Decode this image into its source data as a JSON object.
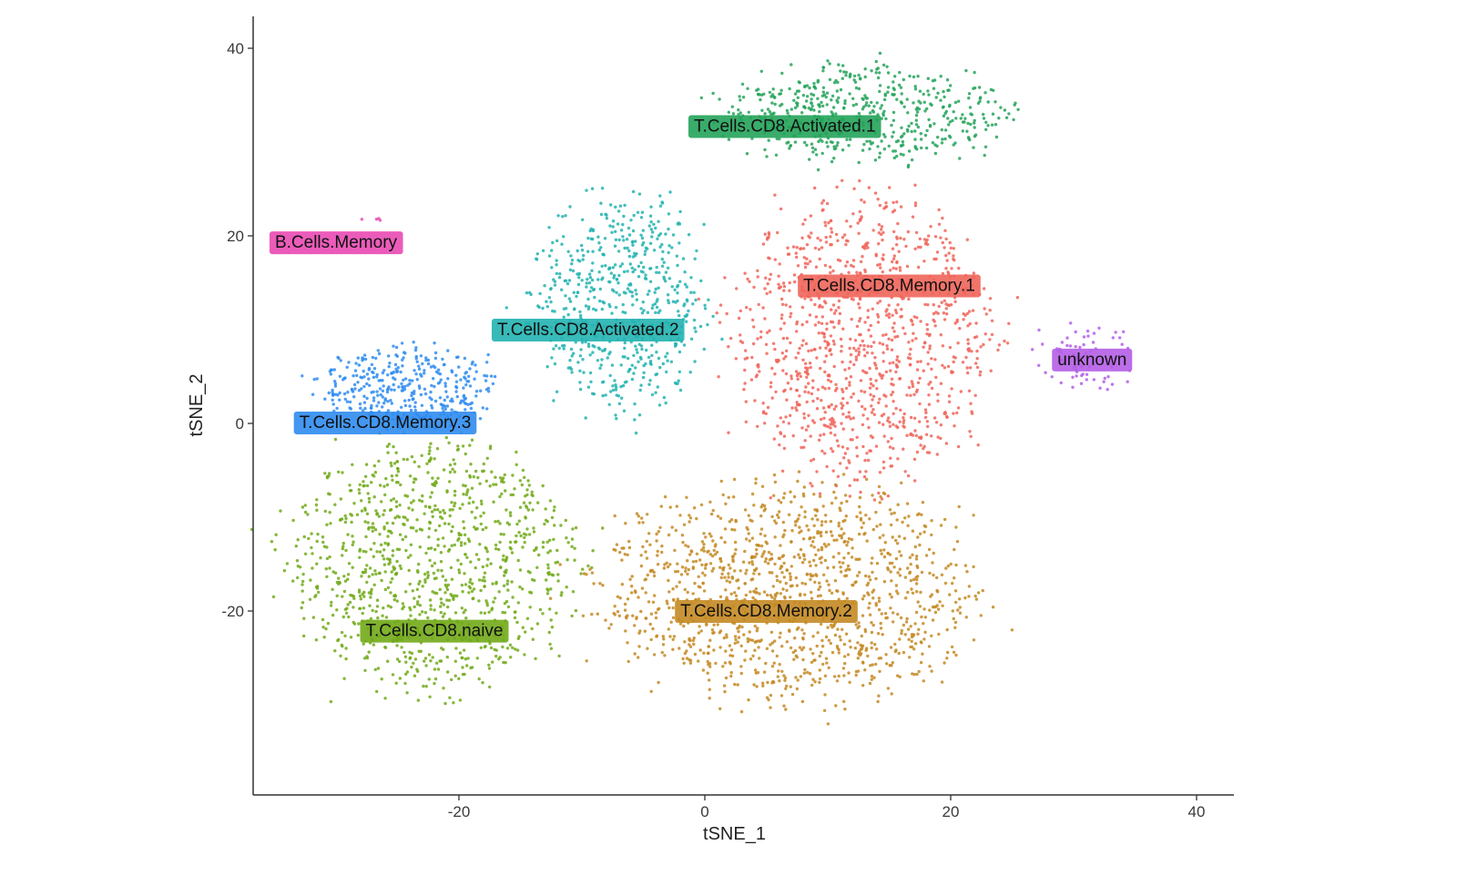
{
  "chart_data": {
    "type": "scatter",
    "xlabel": "tSNE_1",
    "ylabel": "tSNE_2",
    "xlim": [
      -37,
      43
    ],
    "ylim": [
      -39,
      44
    ],
    "x_ticks": [
      {
        "value": -20,
        "label": "-20"
      },
      {
        "value": 0,
        "label": "0"
      },
      {
        "value": 20,
        "label": "20"
      },
      {
        "value": 40,
        "label": "40"
      }
    ],
    "y_ticks": [
      {
        "value": -20,
        "label": "-20"
      },
      {
        "value": 0,
        "label": "0"
      },
      {
        "value": 20,
        "label": "20"
      },
      {
        "value": 40,
        "label": "40"
      }
    ],
    "grid": false,
    "legend": "none",
    "clusters": [
      {
        "name": "T.Cells.CD8.Activated.1",
        "color": "#24a35a",
        "label_at": [
          6.5,
          31.8
        ],
        "region": {
          "center": [
            13,
            33
          ],
          "spread": [
            11,
            5
          ],
          "count": 520
        }
      },
      {
        "name": "T.Cells.CD8.Memory.1",
        "color": "#f0655a",
        "label_at": [
          15,
          14.8
        ],
        "region": {
          "center": [
            13,
            9
          ],
          "spread": [
            10,
            15
          ],
          "count": 1050
        }
      },
      {
        "name": "T.Cells.CD8.Activated.2",
        "color": "#22b3b0",
        "label_at": [
          -9.5,
          10.1
        ],
        "region": {
          "center": [
            -7,
            13
          ],
          "spread": [
            7,
            11
          ],
          "count": 600
        }
      },
      {
        "name": "B.Cells.Memory",
        "color": "#e94ab3",
        "label_at": [
          -30,
          19.4
        ],
        "region": {
          "center": [
            -27,
            21.5
          ],
          "spread": [
            1,
            0.4
          ],
          "count": 4
        }
      },
      {
        "name": "T.Cells.CD8.Memory.3",
        "color": "#2f8cf0",
        "label_at": [
          -26,
          0.2
        ],
        "region": {
          "center": [
            -24,
            4
          ],
          "spread": [
            7,
            4
          ],
          "count": 360
        }
      },
      {
        "name": "unknown",
        "color": "#b45ee6",
        "label_at": [
          31.5,
          6.9
        ],
        "region": {
          "center": [
            31,
            7
          ],
          "spread": [
            4,
            4
          ],
          "count": 70
        }
      },
      {
        "name": "T.Cells.CD8.naive",
        "color": "#72aa1a",
        "label_at": [
          -22,
          -22
        ],
        "region": {
          "center": [
            -22,
            -15
          ],
          "spread": [
            11,
            13
          ],
          "count": 1050
        }
      },
      {
        "name": "T.Cells.CD8.Memory.2",
        "color": "#c48a23",
        "label_at": [
          5,
          -19.9
        ],
        "region": {
          "center": [
            7,
            -18
          ],
          "spread": [
            15,
            11
          ],
          "count": 1250
        }
      }
    ]
  }
}
